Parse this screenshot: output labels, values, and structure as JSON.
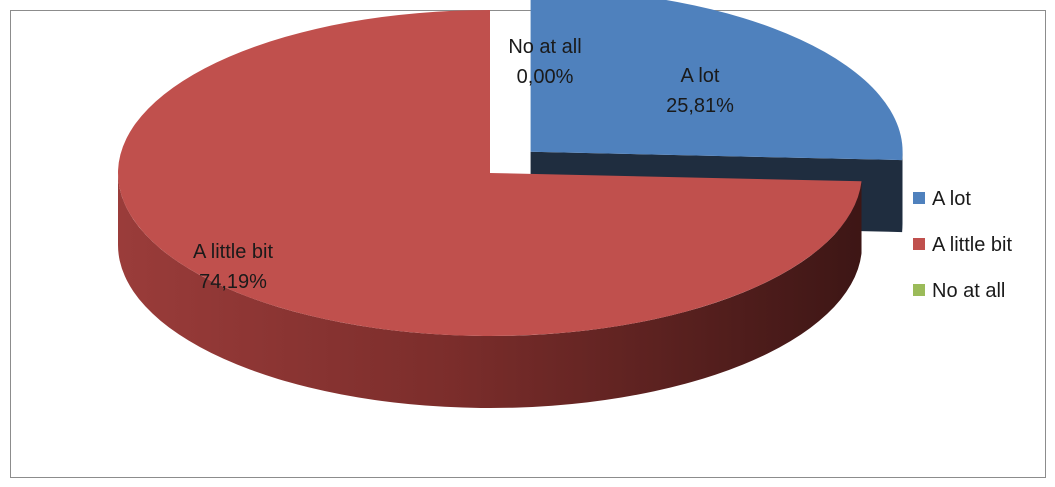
{
  "chart_data": {
    "type": "pie",
    "style": "3d-exploded",
    "legend_position": "right",
    "slices": [
      {
        "name": "A lot",
        "value": 25.81,
        "label": "25,81%",
        "color": "#4f81bd",
        "side_color": "#203040",
        "exploded": true
      },
      {
        "name": "A little bit",
        "value": 74.19,
        "label": "74,19%",
        "color": "#c0504d",
        "side_color": "#7a2c2a",
        "exploded": false
      },
      {
        "name": "No at all",
        "value": 0.0,
        "label": "0,00%",
        "color": "#9bbb59",
        "side_color": "#6a8a3a",
        "exploded": false
      }
    ]
  }
}
